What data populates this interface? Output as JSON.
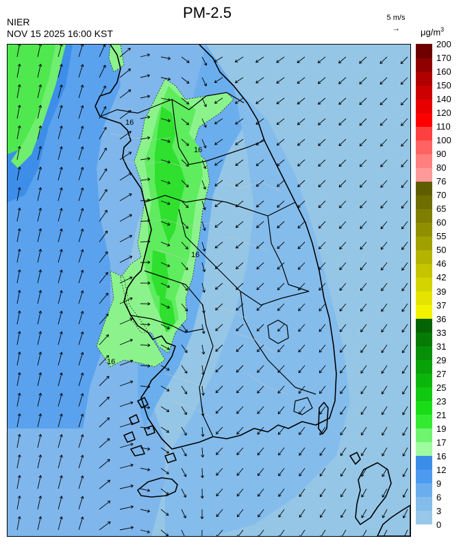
{
  "header": {
    "title": "PM-2.5",
    "agency": "NIER",
    "timestamp": "NOV 15 2025 16:00 KST",
    "wind_scale_label": "5 m/s",
    "wind_scale_arrow": "→",
    "unit": "μg/m",
    "unit_exponent": "3"
  },
  "map": {
    "station_labels": [
      "16",
      "16",
      "16",
      "16"
    ],
    "colors": {
      "sea": "#95c6e6",
      "level_0": "#95c6e6",
      "level_1": "#7fb6ec",
      "level_2": "#5aa2ee",
      "level_3": "#3d8ee9",
      "level_4": "#8cf38c",
      "level_5": "#5fec5f",
      "level_6": "#2fe02f",
      "coast": "#000000",
      "province_border": "#000000",
      "district_border": "#c8c8c8"
    }
  },
  "legend": {
    "boundaries": [
      "0",
      "3",
      "6",
      "9",
      "12",
      "16",
      "17",
      "19",
      "21",
      "23",
      "25",
      "27",
      "29",
      "31",
      "33",
      "36",
      "37",
      "39",
      "42",
      "46",
      "50",
      "55",
      "60",
      "65",
      "70",
      "76",
      "80",
      "90",
      "100",
      "110",
      "120",
      "140",
      "150",
      "160",
      "170",
      "200"
    ],
    "colors": [
      "#98c8e8",
      "#84bcec",
      "#6aaeee",
      "#4c9bf0",
      "#3a8ee8",
      "#9ffb9f",
      "#6ff46f",
      "#33ea33",
      "#18dc18",
      "#10c810",
      "#0cb50c",
      "#09a209",
      "#078f07",
      "#057a05",
      "#046404",
      "#f2f200",
      "#e4e400",
      "#d4d400",
      "#c4c400",
      "#b4b400",
      "#a0a000",
      "#8f8f00",
      "#7e7e00",
      "#6d6d00",
      "#5e5e00",
      "#ff9a9a",
      "#ff7e7e",
      "#ff6262",
      "#ff4040",
      "#ff0000",
      "#e80000",
      "#cc0000",
      "#b00000",
      "#900000",
      "#6e0000"
    ]
  }
}
